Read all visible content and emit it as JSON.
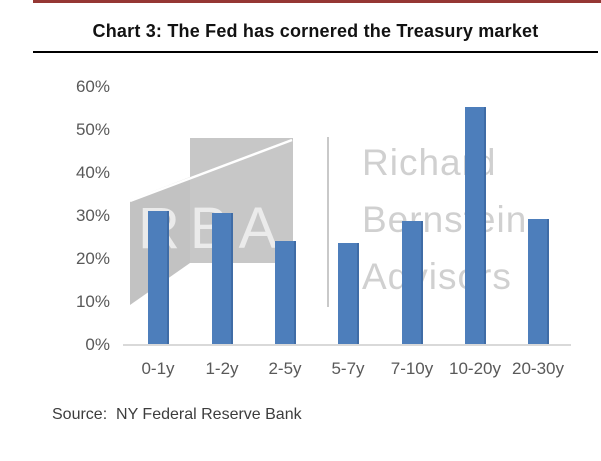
{
  "title": "Chart 3: The Fed has cornered the Treasury market",
  "source_label": "Source:  NY Federal Reserve Bank",
  "watermark": {
    "logo_text": "RBA",
    "lines": [
      "Richard",
      "Bernstein",
      "Advisors"
    ]
  },
  "colors": {
    "top_rule": "#953734",
    "title": "#121212",
    "underline": "#000000",
    "bar": "#4d7ebb",
    "bar_edge": "#3f6ca6",
    "axis": "#d9d9d9",
    "tick": "#595959",
    "watermark_text": "#d0d0d0",
    "logo_gray": "#c7c7c7",
    "logo_flap_gray": "#c2c2c2",
    "divider": "#c9c9c9",
    "source": "#3d3d3d"
  },
  "chart_data": {
    "type": "bar",
    "title": "Chart 3: The Fed has cornered the Treasury market",
    "categories": [
      "0-1y",
      "1-2y",
      "2-5y",
      "5-7y",
      "7-10y",
      "10-20y",
      "20-30y"
    ],
    "values": [
      31,
      30.5,
      24,
      23.5,
      28.5,
      55,
      29
    ],
    "xlabel": "",
    "ylabel": "",
    "ylim": [
      0,
      60
    ],
    "yticks": [
      0,
      10,
      20,
      30,
      40,
      50,
      60
    ],
    "ytick_suffix": "%",
    "grid": false,
    "legend": null,
    "source": "NY Federal Reserve Bank"
  }
}
